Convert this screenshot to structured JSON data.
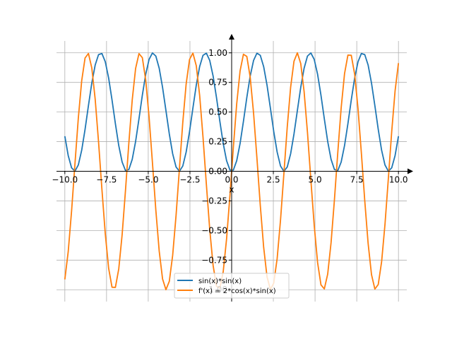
{
  "chart_data": {
    "type": "line",
    "title": "",
    "xlabel": "x",
    "ylabel": "",
    "xlim": [
      -10.5,
      10.5
    ],
    "ylim": [
      -1.1,
      1.1
    ],
    "x_ticks": [
      -10.0,
      -7.5,
      -5.0,
      -2.5,
      0.0,
      2.5,
      5.0,
      7.5,
      10.0
    ],
    "x_tick_labels": [
      "−10.0",
      "−7.5",
      "−5.0",
      "−2.5",
      "0.0",
      "2.5",
      "5.0",
      "7.5",
      "10.0"
    ],
    "y_ticks": [
      -1.0,
      -0.75,
      -0.5,
      -0.25,
      0.0,
      0.25,
      0.5,
      0.75,
      1.0
    ],
    "y_tick_labels": [
      "−1.00",
      "−0.75",
      "−0.50",
      "−0.25",
      "0.00",
      "0.25",
      "0.50",
      "0.75",
      "1.00"
    ],
    "grid": true,
    "legend_position": "bottom-center",
    "x_range": [
      -10,
      10
    ],
    "samples": 100,
    "series": [
      {
        "name": "sin(x)*sin(x)",
        "expression": "sin(x)^2",
        "color": "#1f77b4"
      },
      {
        "name": "f'(x) = 2*cos(x)*sin(x)",
        "expression": "2*cos(x)*sin(x)",
        "color": "#ff7f0e"
      }
    ]
  }
}
